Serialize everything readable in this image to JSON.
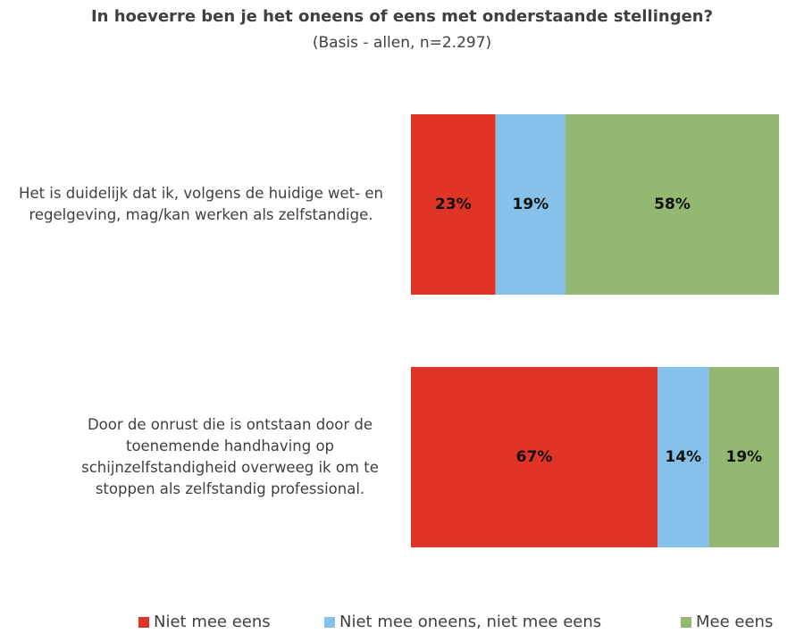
{
  "chart_data": {
    "type": "stacked-bar",
    "orientation": "horizontal",
    "title": "In hoeverre ben je het oneens of eens met onderstaande stellingen?",
    "subtitle": "(Basis - allen, n=2.297)",
    "categories": [
      "Het is duidelijk dat ik, volgens de huidige wet- en regelgeving, mag/kan werken als zelfstandige.",
      "Door de onrust die is ontstaan door de toenemende handhaving op schijnzelfstandigheid overweeg ik om te stoppen als zelfstandig professional."
    ],
    "xlim": [
      0,
      100
    ],
    "series": [
      {
        "name": "Niet mee eens",
        "color": "#e03526",
        "values": [
          23,
          67
        ],
        "value_labels": [
          "23%",
          "67%"
        ]
      },
      {
        "name": "Niet mee oneens, niet mee eens",
        "color": "#85c1e9",
        "values": [
          19,
          14
        ],
        "value_labels": [
          "19%",
          "14%"
        ]
      },
      {
        "name": "Mee eens",
        "color": "#93b872",
        "values": [
          58,
          19
        ],
        "value_labels": [
          "58%",
          "19%"
        ]
      }
    ],
    "legend": "bottom"
  }
}
